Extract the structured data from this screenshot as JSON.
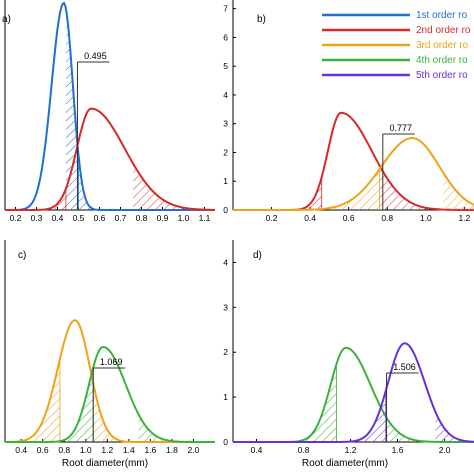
{
  "figure": {
    "xlabel": "Root diameter(mm)",
    "legend": [
      {
        "label": "1st order ro",
        "color": "#1f6fd1"
      },
      {
        "label": "2nd order ro",
        "color": "#d42a2a"
      },
      {
        "label": "3rd order ro",
        "color": "#f0a21a"
      },
      {
        "label": "4th order ro",
        "color": "#3bb33b"
      },
      {
        "label": "5th order ro",
        "color": "#6a2fd6"
      }
    ]
  },
  "chart_data": [
    {
      "type": "line",
      "panel": "a)",
      "xlim": [
        0.15,
        1.15
      ],
      "ylim": [
        0,
        7
      ],
      "x_ticks": [
        "0.2",
        "0.3",
        "0.4",
        "0.5",
        "0.6",
        "0.7",
        "0.8",
        "0.9",
        "1.0",
        "1.1"
      ],
      "y_ticks": [],
      "annotation": "0.495",
      "series": [
        {
          "order": 1,
          "peak_x": 0.43,
          "peak_y": 6.9,
          "hatch_low": 0.44,
          "hatch_high": 0.5
        },
        {
          "order": 2,
          "peak_x": 0.56,
          "peak_y": 3.38,
          "hatch_low": 0.44,
          "hatch_high": 0.76
        }
      ]
    },
    {
      "type": "line",
      "panel": "b)",
      "xlim": [
        0.0,
        1.25
      ],
      "ylim": [
        0,
        7.3
      ],
      "x_ticks": [
        "0.2",
        "0.4",
        "0.6",
        "0.8",
        "1.0",
        "1.2"
      ],
      "y_ticks": [
        "0",
        "1",
        "2",
        "3",
        "4",
        "5",
        "6",
        "7"
      ],
      "annotation": "0.777",
      "series": [
        {
          "order": 2,
          "peak_x": 0.56,
          "peak_y": 3.38,
          "hatch_low": 0.46,
          "hatch_high": 0.76
        },
        {
          "order": 3,
          "peak_x": 0.93,
          "peak_y": 2.5,
          "hatch_low": 0.76,
          "hatch_high": 1.09
        }
      ]
    },
    {
      "type": "line",
      "panel": "c)",
      "xlim": [
        0.25,
        2.2
      ],
      "ylim": [
        0,
        3.4
      ],
      "x_ticks": [
        "0.4",
        "0.6",
        "0.8",
        "1.0",
        "1.2",
        "1.4",
        "1.6",
        "1.8",
        "2.0"
      ],
      "y_ticks": [],
      "annotation": "1.069",
      "series": [
        {
          "order": 3,
          "peak_x": 0.9,
          "peak_y": 2.05,
          "hatch_low": 0.76,
          "hatch_high": 1.07
        },
        {
          "order": 4,
          "peak_x": 1.16,
          "peak_y": 1.6,
          "hatch_low": 1.07,
          "hatch_high": 1.49
        }
      ]
    },
    {
      "type": "line",
      "panel": "d)",
      "xlim": [
        0.2,
        2.25
      ],
      "ylim": [
        0,
        4.5
      ],
      "x_ticks": [
        "0.4",
        "0.8",
        "1.2",
        "1.6",
        "2.0"
      ],
      "y_ticks": [
        "0",
        "1",
        "2",
        "3",
        "4"
      ],
      "annotation": "1.506",
      "series": [
        {
          "order": 4,
          "peak_x": 1.16,
          "peak_y": 2.1,
          "hatch_low": 1.08,
          "hatch_high": 1.5
        },
        {
          "order": 5,
          "peak_x": 1.66,
          "peak_y": 2.2,
          "hatch_low": 1.5,
          "hatch_high": 1.92
        }
      ]
    }
  ]
}
